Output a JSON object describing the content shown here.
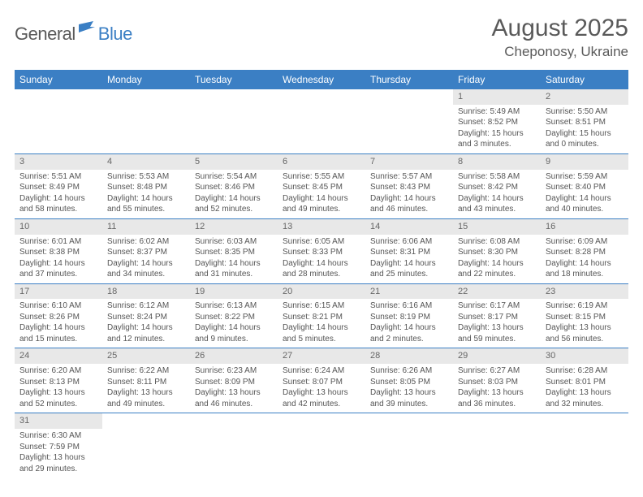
{
  "logo": {
    "part1": "General",
    "part2": "Blue"
  },
  "title": "August 2025",
  "location": "Cheponosy, Ukraine",
  "colors": {
    "header_bg": "#3b7fc4",
    "header_text": "#ffffff",
    "daynum_bg": "#e8e8e8",
    "body_text": "#555555",
    "divider": "#3b7fc4"
  },
  "weekdays": [
    "Sunday",
    "Monday",
    "Tuesday",
    "Wednesday",
    "Thursday",
    "Friday",
    "Saturday"
  ],
  "weeks": [
    [
      {
        "n": "",
        "sr": "",
        "ss": "",
        "dl": ""
      },
      {
        "n": "",
        "sr": "",
        "ss": "",
        "dl": ""
      },
      {
        "n": "",
        "sr": "",
        "ss": "",
        "dl": ""
      },
      {
        "n": "",
        "sr": "",
        "ss": "",
        "dl": ""
      },
      {
        "n": "",
        "sr": "",
        "ss": "",
        "dl": ""
      },
      {
        "n": "1",
        "sr": "Sunrise: 5:49 AM",
        "ss": "Sunset: 8:52 PM",
        "dl": "Daylight: 15 hours and 3 minutes."
      },
      {
        "n": "2",
        "sr": "Sunrise: 5:50 AM",
        "ss": "Sunset: 8:51 PM",
        "dl": "Daylight: 15 hours and 0 minutes."
      }
    ],
    [
      {
        "n": "3",
        "sr": "Sunrise: 5:51 AM",
        "ss": "Sunset: 8:49 PM",
        "dl": "Daylight: 14 hours and 58 minutes."
      },
      {
        "n": "4",
        "sr": "Sunrise: 5:53 AM",
        "ss": "Sunset: 8:48 PM",
        "dl": "Daylight: 14 hours and 55 minutes."
      },
      {
        "n": "5",
        "sr": "Sunrise: 5:54 AM",
        "ss": "Sunset: 8:46 PM",
        "dl": "Daylight: 14 hours and 52 minutes."
      },
      {
        "n": "6",
        "sr": "Sunrise: 5:55 AM",
        "ss": "Sunset: 8:45 PM",
        "dl": "Daylight: 14 hours and 49 minutes."
      },
      {
        "n": "7",
        "sr": "Sunrise: 5:57 AM",
        "ss": "Sunset: 8:43 PM",
        "dl": "Daylight: 14 hours and 46 minutes."
      },
      {
        "n": "8",
        "sr": "Sunrise: 5:58 AM",
        "ss": "Sunset: 8:42 PM",
        "dl": "Daylight: 14 hours and 43 minutes."
      },
      {
        "n": "9",
        "sr": "Sunrise: 5:59 AM",
        "ss": "Sunset: 8:40 PM",
        "dl": "Daylight: 14 hours and 40 minutes."
      }
    ],
    [
      {
        "n": "10",
        "sr": "Sunrise: 6:01 AM",
        "ss": "Sunset: 8:38 PM",
        "dl": "Daylight: 14 hours and 37 minutes."
      },
      {
        "n": "11",
        "sr": "Sunrise: 6:02 AM",
        "ss": "Sunset: 8:37 PM",
        "dl": "Daylight: 14 hours and 34 minutes."
      },
      {
        "n": "12",
        "sr": "Sunrise: 6:03 AM",
        "ss": "Sunset: 8:35 PM",
        "dl": "Daylight: 14 hours and 31 minutes."
      },
      {
        "n": "13",
        "sr": "Sunrise: 6:05 AM",
        "ss": "Sunset: 8:33 PM",
        "dl": "Daylight: 14 hours and 28 minutes."
      },
      {
        "n": "14",
        "sr": "Sunrise: 6:06 AM",
        "ss": "Sunset: 8:31 PM",
        "dl": "Daylight: 14 hours and 25 minutes."
      },
      {
        "n": "15",
        "sr": "Sunrise: 6:08 AM",
        "ss": "Sunset: 8:30 PM",
        "dl": "Daylight: 14 hours and 22 minutes."
      },
      {
        "n": "16",
        "sr": "Sunrise: 6:09 AM",
        "ss": "Sunset: 8:28 PM",
        "dl": "Daylight: 14 hours and 18 minutes."
      }
    ],
    [
      {
        "n": "17",
        "sr": "Sunrise: 6:10 AM",
        "ss": "Sunset: 8:26 PM",
        "dl": "Daylight: 14 hours and 15 minutes."
      },
      {
        "n": "18",
        "sr": "Sunrise: 6:12 AM",
        "ss": "Sunset: 8:24 PM",
        "dl": "Daylight: 14 hours and 12 minutes."
      },
      {
        "n": "19",
        "sr": "Sunrise: 6:13 AM",
        "ss": "Sunset: 8:22 PM",
        "dl": "Daylight: 14 hours and 9 minutes."
      },
      {
        "n": "20",
        "sr": "Sunrise: 6:15 AM",
        "ss": "Sunset: 8:21 PM",
        "dl": "Daylight: 14 hours and 5 minutes."
      },
      {
        "n": "21",
        "sr": "Sunrise: 6:16 AM",
        "ss": "Sunset: 8:19 PM",
        "dl": "Daylight: 14 hours and 2 minutes."
      },
      {
        "n": "22",
        "sr": "Sunrise: 6:17 AM",
        "ss": "Sunset: 8:17 PM",
        "dl": "Daylight: 13 hours and 59 minutes."
      },
      {
        "n": "23",
        "sr": "Sunrise: 6:19 AM",
        "ss": "Sunset: 8:15 PM",
        "dl": "Daylight: 13 hours and 56 minutes."
      }
    ],
    [
      {
        "n": "24",
        "sr": "Sunrise: 6:20 AM",
        "ss": "Sunset: 8:13 PM",
        "dl": "Daylight: 13 hours and 52 minutes."
      },
      {
        "n": "25",
        "sr": "Sunrise: 6:22 AM",
        "ss": "Sunset: 8:11 PM",
        "dl": "Daylight: 13 hours and 49 minutes."
      },
      {
        "n": "26",
        "sr": "Sunrise: 6:23 AM",
        "ss": "Sunset: 8:09 PM",
        "dl": "Daylight: 13 hours and 46 minutes."
      },
      {
        "n": "27",
        "sr": "Sunrise: 6:24 AM",
        "ss": "Sunset: 8:07 PM",
        "dl": "Daylight: 13 hours and 42 minutes."
      },
      {
        "n": "28",
        "sr": "Sunrise: 6:26 AM",
        "ss": "Sunset: 8:05 PM",
        "dl": "Daylight: 13 hours and 39 minutes."
      },
      {
        "n": "29",
        "sr": "Sunrise: 6:27 AM",
        "ss": "Sunset: 8:03 PM",
        "dl": "Daylight: 13 hours and 36 minutes."
      },
      {
        "n": "30",
        "sr": "Sunrise: 6:28 AM",
        "ss": "Sunset: 8:01 PM",
        "dl": "Daylight: 13 hours and 32 minutes."
      }
    ],
    [
      {
        "n": "31",
        "sr": "Sunrise: 6:30 AM",
        "ss": "Sunset: 7:59 PM",
        "dl": "Daylight: 13 hours and 29 minutes."
      },
      {
        "n": "",
        "sr": "",
        "ss": "",
        "dl": ""
      },
      {
        "n": "",
        "sr": "",
        "ss": "",
        "dl": ""
      },
      {
        "n": "",
        "sr": "",
        "ss": "",
        "dl": ""
      },
      {
        "n": "",
        "sr": "",
        "ss": "",
        "dl": ""
      },
      {
        "n": "",
        "sr": "",
        "ss": "",
        "dl": ""
      },
      {
        "n": "",
        "sr": "",
        "ss": "",
        "dl": ""
      }
    ]
  ]
}
